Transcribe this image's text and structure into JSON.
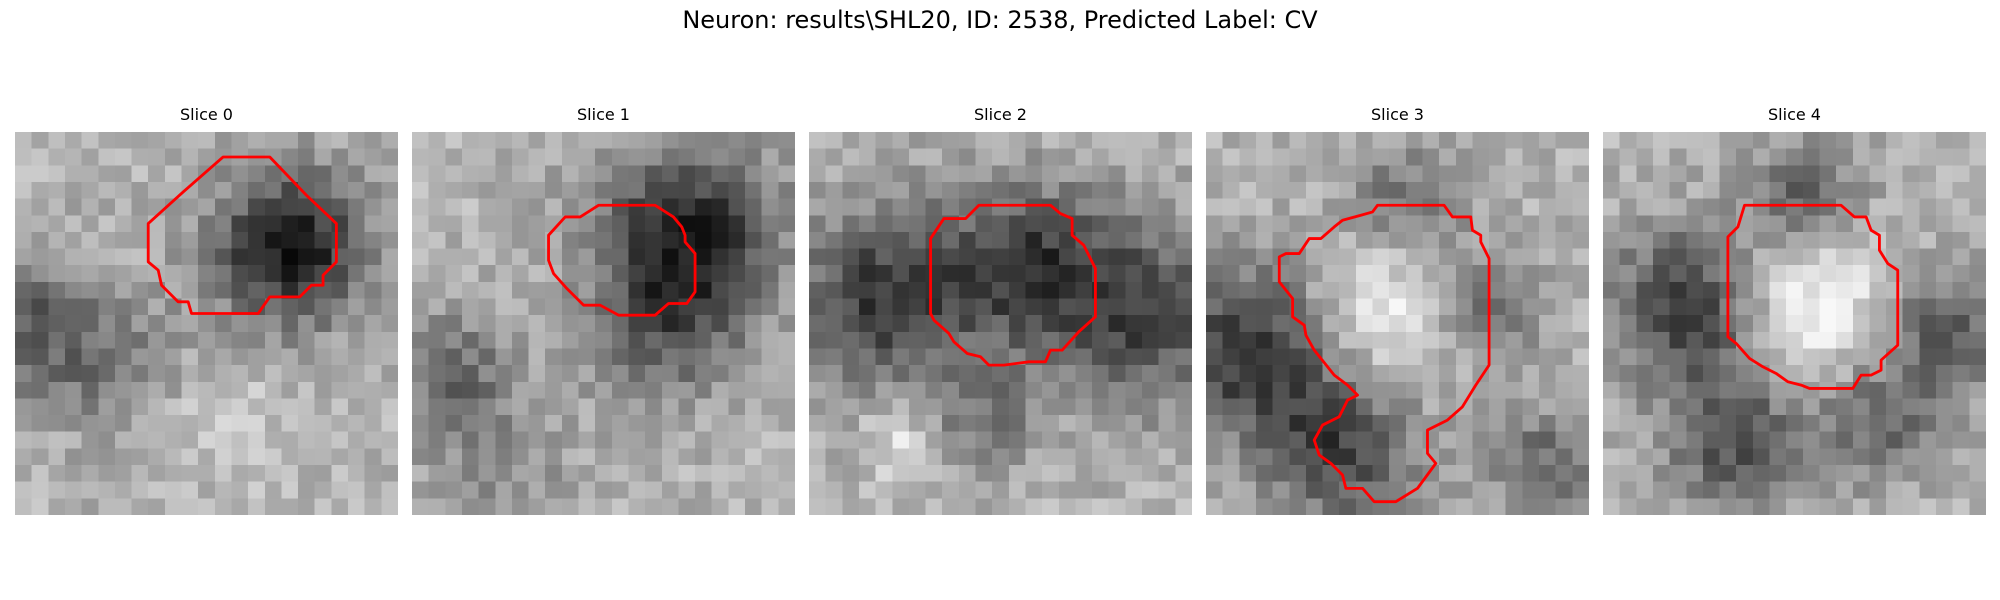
{
  "figure": {
    "title": "Neuron: results\\SHL20, ID: 2538, Predicted Label: CV"
  },
  "colors": {
    "contour": "#ff0000",
    "background": "#ffffff",
    "colormap": "grayscale"
  },
  "panels": [
    {
      "title": "Slice 0"
    },
    {
      "title": "Slice 1"
    },
    {
      "title": "Slice 2"
    },
    {
      "title": "Slice 3"
    },
    {
      "title": "Slice 4"
    }
  ]
}
